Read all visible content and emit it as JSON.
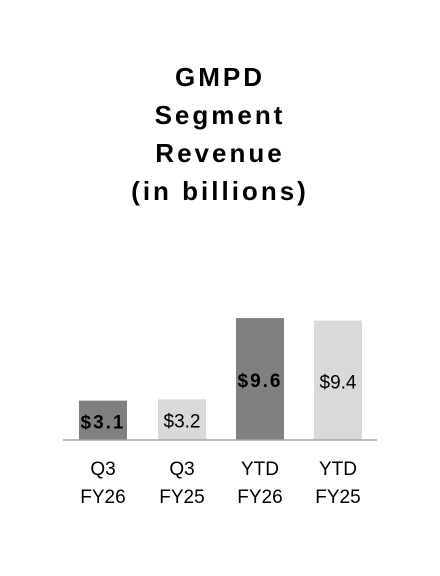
{
  "chart_data": {
    "type": "bar",
    "title": "GMPD\nSegment\nRevenue\n(in billions)",
    "categories": [
      "Q3\nFY26",
      "Q3\nFY25",
      "YTD\nFY26",
      "YTD\nFY25"
    ],
    "values": [
      3.1,
      3.2,
      9.6,
      9.4
    ],
    "value_labels": [
      "$3.1",
      "$3.2",
      "$9.6",
      "$9.4"
    ],
    "colors": [
      "#808080",
      "#d9d9d9",
      "#808080",
      "#d9d9d9"
    ]
  }
}
